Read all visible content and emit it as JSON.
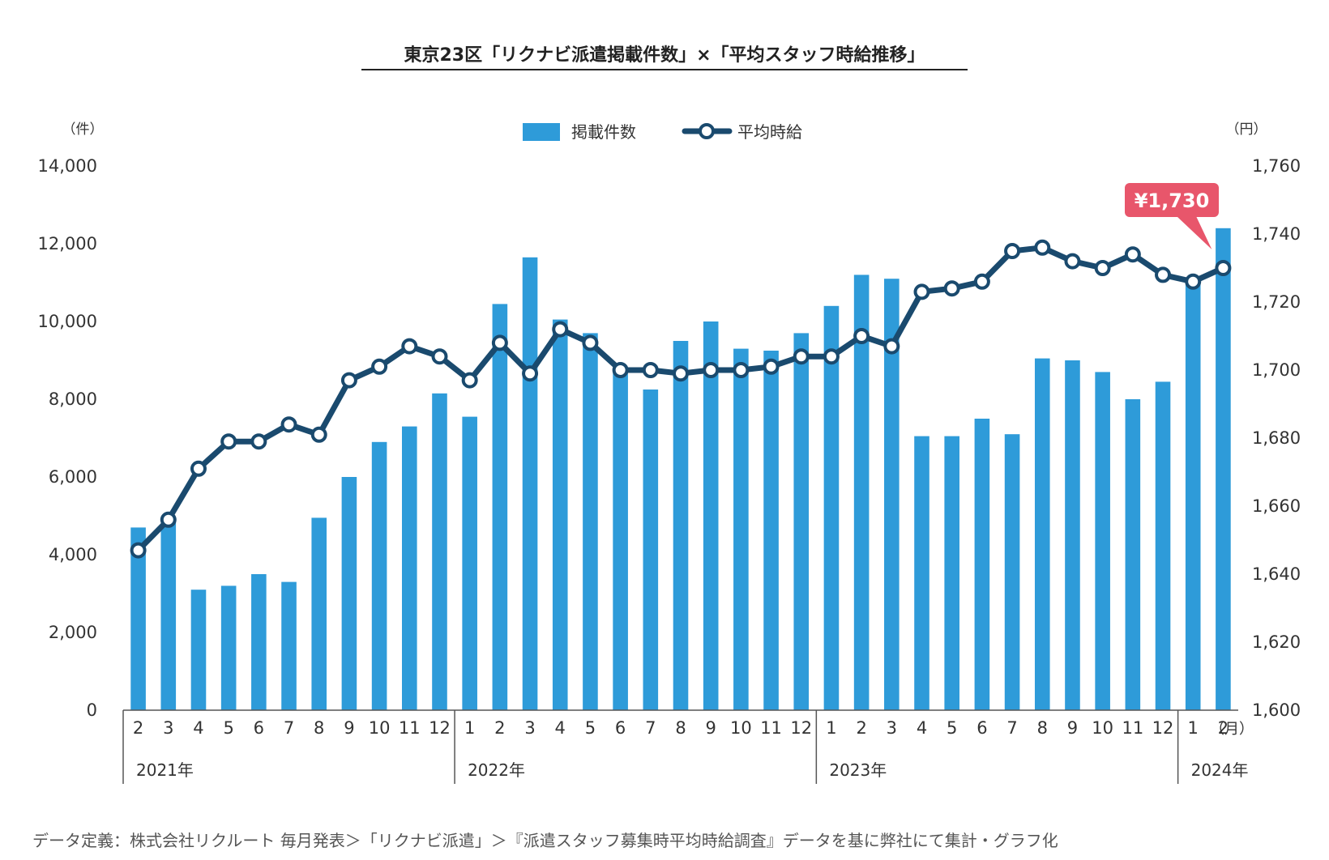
{
  "chart_data": {
    "type": "bar+line",
    "title": "東京23区「リクナビ派遣掲載件数」×「平均スタッフ時給推移」",
    "left_axis": {
      "unit": "（件）",
      "range": [
        0,
        14000
      ],
      "ticks": [
        "0",
        "2,000",
        "4,000",
        "6,000",
        "8,000",
        "10,000",
        "12,000",
        "14,000"
      ]
    },
    "right_axis": {
      "unit": "（円）",
      "range": [
        1600,
        1760
      ],
      "ticks": [
        "1,600",
        "1,620",
        "1,640",
        "1,660",
        "1,680",
        "1,700",
        "1,720",
        "1,740",
        "1,760"
      ]
    },
    "month_unit": "（月）",
    "legend": {
      "bar": "掲載件数",
      "line": "平均時給",
      "placement": "top-center"
    },
    "colors": {
      "bar": "#2e9bd9",
      "line": "#1a4a6e",
      "marker_fill": "#ffffff",
      "callout": "#e8566b",
      "axis": "#555555",
      "text": "#333333"
    },
    "grid": false,
    "months": [
      "2",
      "3",
      "4",
      "5",
      "6",
      "7",
      "8",
      "9",
      "10",
      "11",
      "12",
      "1",
      "2",
      "3",
      "4",
      "5",
      "6",
      "7",
      "8",
      "9",
      "10",
      "11",
      "12",
      "1",
      "2",
      "3",
      "4",
      "5",
      "6",
      "7",
      "8",
      "9",
      "10",
      "11",
      "12",
      "1",
      "2"
    ],
    "years": [
      {
        "label": "2021年",
        "start": 0,
        "count": 11
      },
      {
        "label": "2022年",
        "start": 11,
        "count": 12
      },
      {
        "label": "2023年",
        "start": 23,
        "count": 12
      },
      {
        "label": "2024年",
        "start": 35,
        "count": 2
      }
    ],
    "series": [
      {
        "name": "掲載件数",
        "type": "bar",
        "axis": "left",
        "values": [
          4700,
          4900,
          3100,
          3200,
          3500,
          3300,
          4950,
          6000,
          6900,
          7300,
          8150,
          7550,
          10450,
          11650,
          10050,
          9700,
          8800,
          8250,
          9500,
          10000,
          9300,
          9250,
          9700,
          10400,
          11200,
          11100,
          7050,
          7050,
          7500,
          7100,
          9050,
          9000,
          8700,
          8000,
          8450,
          11100,
          12400
        ]
      },
      {
        "name": "平均時給",
        "type": "line",
        "axis": "right",
        "values": [
          1647,
          1656,
          1671,
          1679,
          1679,
          1684,
          1681,
          1697,
          1701,
          1707,
          1704,
          1697,
          1708,
          1699,
          1712,
          1708,
          1700,
          1700,
          1699,
          1700,
          1700,
          1701,
          1704,
          1704,
          1710,
          1707,
          1723,
          1724,
          1726,
          1735,
          1736,
          1732,
          1730,
          1734,
          1728,
          1726,
          1730
        ]
      }
    ],
    "callout": {
      "index": 36,
      "text": "¥1,730"
    }
  },
  "footnote": "データ定義：株式会社リクルート 毎月発表＞「リクナビ派遣」＞『派遣スタッフ募集時平均時給調査』データを基に弊社にて集計・グラフ化"
}
